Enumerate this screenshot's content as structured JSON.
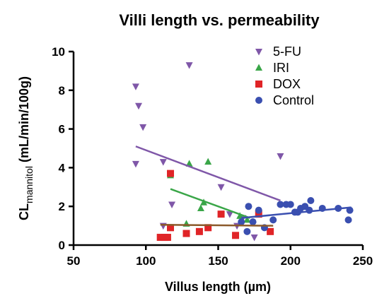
{
  "chart_data": {
    "type": "scatter",
    "title": "Villi length vs. permeability",
    "xlabel": "Villus length (µm)",
    "ylabel": {
      "main": "CL",
      "sub": "mannitol",
      "tail": " (mL/min/100g)"
    },
    "xlim": [
      50,
      250
    ],
    "ylim": [
      0,
      10
    ],
    "xticks": [
      50,
      100,
      150,
      200,
      250
    ],
    "yticks": [
      0,
      2,
      4,
      6,
      8,
      10
    ],
    "legend_position": "top-right",
    "series": [
      {
        "name": "5-FU",
        "color": "#7F57A8",
        "marker": "triangle-down",
        "points": [
          [
            93,
            8.2
          ],
          [
            95,
            7.2
          ],
          [
            98,
            6.1
          ],
          [
            93,
            4.2
          ],
          [
            112,
            4.3
          ],
          [
            112,
            1.0
          ],
          [
            118,
            2.1
          ],
          [
            130,
            9.3
          ],
          [
            152,
            3.0
          ],
          [
            158,
            1.6
          ],
          [
            163,
            1.0
          ],
          [
            167,
            1.4
          ],
          [
            175,
            0.4
          ],
          [
            193,
            4.6
          ]
        ],
        "trend": {
          "x": [
            93,
            193
          ],
          "y": [
            5.1,
            2.3
          ],
          "color": "#7F57A8"
        }
      },
      {
        "name": "IRI",
        "color": "#3AA648",
        "marker": "triangle-up",
        "points": [
          [
            117,
            3.6
          ],
          [
            130,
            4.2
          ],
          [
            143,
            4.3
          ],
          [
            128,
            1.1
          ],
          [
            140,
            2.2
          ],
          [
            138,
            1.9
          ],
          [
            165,
            1.5
          ],
          [
            170,
            1.3
          ]
        ],
        "trend": {
          "x": [
            117,
            172
          ],
          "y": [
            2.9,
            1.4
          ],
          "color": "#3AA648"
        }
      },
      {
        "name": "DOX",
        "color": "#E02427",
        "marker": "square",
        "points": [
          [
            110,
            0.4
          ],
          [
            113,
            0.4
          ],
          [
            115,
            0.4
          ],
          [
            117,
            0.9
          ],
          [
            117,
            3.7
          ],
          [
            128,
            0.6
          ],
          [
            137,
            0.7
          ],
          [
            143,
            0.9
          ],
          [
            152,
            1.6
          ],
          [
            162,
            0.5
          ],
          [
            178,
            1.6
          ],
          [
            186,
            0.7
          ]
        ],
        "trend": {
          "x": [
            110,
            188
          ],
          "y": [
            1.05,
            1.0
          ],
          "color": "#8B5A2B"
        }
      },
      {
        "name": "Control",
        "color": "#3A4FB0",
        "marker": "circle",
        "points": [
          [
            166,
            1.2
          ],
          [
            170,
            0.7
          ],
          [
            171,
            2.0
          ],
          [
            174,
            1.2
          ],
          [
            178,
            1.8
          ],
          [
            182,
            0.9
          ],
          [
            188,
            1.3
          ],
          [
            193,
            2.1
          ],
          [
            197,
            2.1
          ],
          [
            200,
            2.1
          ],
          [
            203,
            1.7
          ],
          [
            205,
            1.7
          ],
          [
            207,
            1.9
          ],
          [
            210,
            2.0
          ],
          [
            213,
            1.8
          ],
          [
            214,
            2.3
          ],
          [
            222,
            1.9
          ],
          [
            233,
            1.9
          ],
          [
            240,
            1.3
          ],
          [
            241,
            1.8
          ]
        ],
        "trend": {
          "x": [
            166,
            242
          ],
          "y": [
            1.4,
            1.95
          ],
          "color": "#3A4FB0"
        }
      }
    ]
  }
}
